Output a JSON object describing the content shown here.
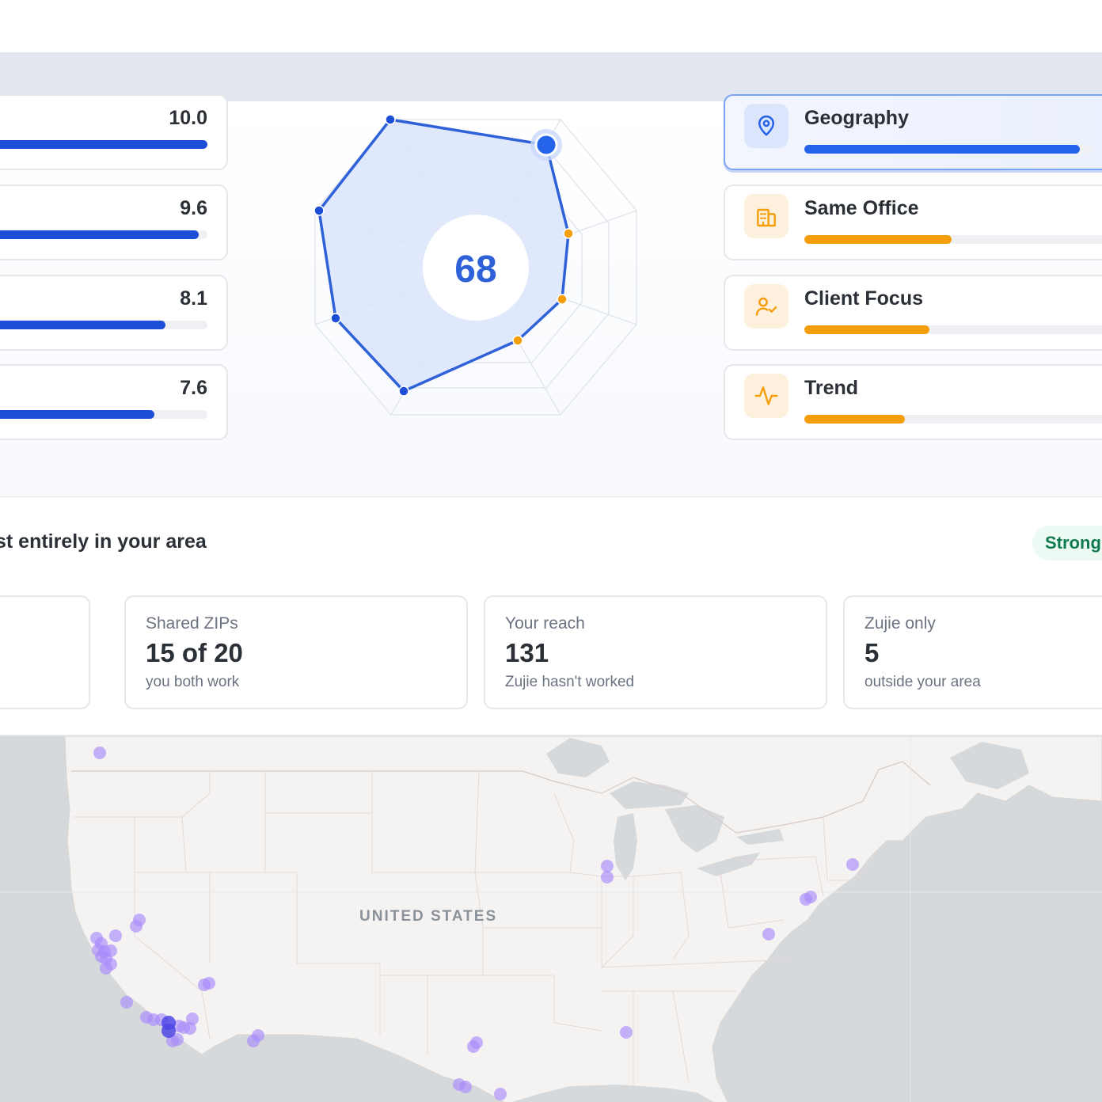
{
  "score": {
    "value": "68"
  },
  "metrics": [
    {
      "value": "10.0",
      "fraction": 1.0
    },
    {
      "value": "9.6",
      "fraction": 0.96
    },
    {
      "value": "8.1",
      "fraction": 0.81
    },
    {
      "value": "7.6",
      "fraction": 0.76
    }
  ],
  "factors": [
    {
      "label": "Geography",
      "icon": "map-pin-icon",
      "fraction": 0.95,
      "color": "#2563eb",
      "active": true
    },
    {
      "label": "Same Office",
      "icon": "building-icon",
      "fraction": 0.47,
      "color": "#f59e0b",
      "active": false
    },
    {
      "label": "Client Focus",
      "icon": "user-check-icon",
      "fraction": 0.4,
      "color": "#f59e0b",
      "active": false
    },
    {
      "label": "Trend",
      "icon": "activity-icon",
      "fraction": 0.32,
      "color": "#f59e0b",
      "active": false
    }
  ],
  "headline": "st entirely in your area",
  "badge": "Strong",
  "stats": [
    {
      "label": "Shared ZIPs",
      "value": "15 of 20",
      "sub": "you both work"
    },
    {
      "label": "Your reach",
      "value": "131",
      "sub": "Zujie hasn't worked"
    },
    {
      "label": "Zujie only",
      "value": "5",
      "sub": "outside your area"
    }
  ],
  "map": {
    "country_label": "UNITED STATES"
  },
  "colors": {
    "accent": "#2563eb",
    "amber": "#f59e0b",
    "badge_text": "#0f7a4d",
    "marker": "#a78bfa"
  }
}
